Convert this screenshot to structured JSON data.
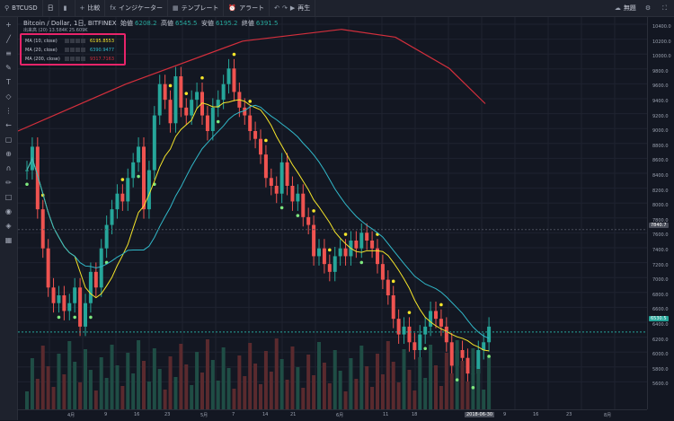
{
  "top_toolbar": {
    "symbol": "BTCUSD",
    "interval": "日",
    "compare": "比較",
    "indicators": "インジケーター",
    "templates": "テンプレート",
    "alert": "アラート",
    "replay": "再生",
    "right_label": "無題"
  },
  "legend": {
    "symbol_line": "Bitcoin / Dollar, 1日, BITFINEX",
    "open_label": "始値",
    "open": "6208.2",
    "high_label": "高値",
    "high": "6545.5",
    "low_label": "安値",
    "low": "6195.2",
    "close_label": "終値",
    "close": "6391.5",
    "sub_line": "出来高 (20)  13.584K  25.609K"
  },
  "moving_averages": [
    {
      "name": "MA (10, close)",
      "value": "6195.8553",
      "color": "#f5e52a"
    },
    {
      "name": "MA (20, close)",
      "value": "6390.9477",
      "color": "#31b8c9"
    },
    {
      "name": "MA (200, close)",
      "value": "9317.7163",
      "color": "#d32f3c"
    }
  ],
  "price_axis": [
    "10400.0",
    "10200.0",
    "10000.0",
    "9800.0",
    "9600.0",
    "9400.0",
    "9200.0",
    "9000.0",
    "8800.0",
    "8600.0",
    "8400.0",
    "8200.0",
    "8000.0",
    "7800.0",
    "7600.0",
    "7400.0",
    "7200.0",
    "7000.0",
    "6800.0",
    "6600.0",
    "6400.0",
    "6200.0",
    "6000.0",
    "5800.0",
    "5600.0"
  ],
  "price_labels": {
    "marker": "7840.7",
    "current": "6530.5"
  },
  "time_axis": [
    "4月",
    "9",
    "16",
    "23",
    "5月",
    "7",
    "14",
    "21",
    "6月",
    "11",
    "18",
    "2018-06-30",
    "9",
    "16",
    "23",
    "8月"
  ],
  "colors": {
    "up": "#26a69a",
    "down": "#ef5350",
    "ma10": "#f5e52a",
    "ma20": "#31b8c9",
    "ma200": "#d32f3c",
    "highlight": "#e8246a"
  }
}
